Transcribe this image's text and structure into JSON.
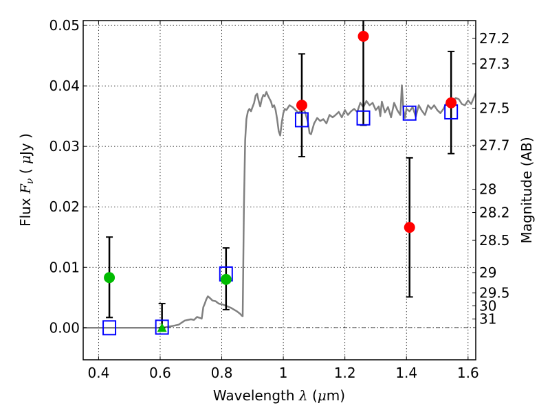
{
  "chart_data": {
    "type": "scatter",
    "title": "",
    "xlabel": "Wavelength  λ (μm)",
    "xlabel_parts": [
      "Wavelength  ",
      "λ",
      " (",
      "μ",
      "m)"
    ],
    "ylabel_parts": [
      "Flux  ",
      "F",
      "ν",
      "  ( ",
      "μ",
      "Jy )"
    ],
    "ylabel_right": "Magnitude (AB)",
    "xlim": [
      0.35,
      1.625
    ],
    "ylim": [
      -0.0053,
      0.0508
    ],
    "grid": true,
    "x_ticks": [
      {
        "value": 0.4,
        "label": "0.4"
      },
      {
        "value": 0.6,
        "label": "0.6"
      },
      {
        "value": 0.8,
        "label": "0.8"
      },
      {
        "value": 1.0,
        "label": "1"
      },
      {
        "value": 1.2,
        "label": "1.2"
      },
      {
        "value": 1.4,
        "label": "1.4"
      },
      {
        "value": 1.6,
        "label": "1.6"
      }
    ],
    "y_ticks": [
      {
        "value": 0.0,
        "label": "0.00"
      },
      {
        "value": 0.01,
        "label": "0.01"
      },
      {
        "value": 0.02,
        "label": "0.02"
      },
      {
        "value": 0.03,
        "label": "0.03"
      },
      {
        "value": 0.04,
        "label": "0.04"
      },
      {
        "value": 0.05,
        "label": "0.05"
      }
    ],
    "magnitude_ticks": [
      {
        "value": 27.2,
        "label": "27.2"
      },
      {
        "value": 27.3,
        "label": "27.3"
      },
      {
        "value": 27.5,
        "label": "27.5"
      },
      {
        "value": 27.7,
        "label": "27.7"
      },
      {
        "value": 28,
        "label": "28"
      },
      {
        "value": 28.2,
        "label": "28.2"
      },
      {
        "value": 28.5,
        "label": "28.5"
      },
      {
        "value": 29,
        "label": "29"
      },
      {
        "value": 29.5,
        "label": "29.5"
      },
      {
        "value": 30,
        "label": "30"
      },
      {
        "value": 31,
        "label": "31"
      }
    ],
    "magnitude_zeropoint": 23.9,
    "zero_line": 0,
    "colors": {
      "model": "#808080",
      "observed_detected": "#00bb00",
      "observed_red": "#ff0000",
      "model_photometry": "#0000ff",
      "errorbar": "#000000"
    },
    "series": [
      {
        "name": "model SED",
        "type": "line",
        "x": [
          0.35,
          0.6,
          0.62,
          0.64,
          0.66,
          0.68,
          0.7,
          0.71,
          0.72,
          0.725,
          0.73,
          0.735,
          0.74,
          0.745,
          0.75,
          0.755,
          0.76,
          0.77,
          0.78,
          0.79,
          0.8,
          0.81,
          0.82,
          0.83,
          0.84,
          0.85,
          0.86,
          0.865,
          0.868,
          0.872,
          0.876,
          0.88,
          0.885,
          0.89,
          0.895,
          0.9,
          0.905,
          0.91,
          0.915,
          0.92,
          0.925,
          0.93,
          0.935,
          0.94,
          0.945,
          0.95,
          0.955,
          0.96,
          0.965,
          0.97,
          0.975,
          0.98,
          0.985,
          0.99,
          0.995,
          1.0,
          1.005,
          1.01,
          1.02,
          1.03,
          1.04,
          1.05,
          1.06,
          1.07,
          1.08,
          1.085,
          1.09,
          1.1,
          1.11,
          1.12,
          1.13,
          1.14,
          1.15,
          1.16,
          1.17,
          1.18,
          1.19,
          1.2,
          1.21,
          1.22,
          1.23,
          1.24,
          1.25,
          1.26,
          1.27,
          1.28,
          1.29,
          1.3,
          1.31,
          1.315,
          1.32,
          1.33,
          1.34,
          1.35,
          1.36,
          1.37,
          1.38,
          1.385,
          1.39,
          1.395,
          1.4,
          1.41,
          1.42,
          1.43,
          1.44,
          1.45,
          1.46,
          1.47,
          1.48,
          1.49,
          1.5,
          1.51,
          1.52,
          1.53,
          1.54,
          1.55,
          1.56,
          1.57,
          1.58,
          1.59,
          1.6,
          1.61,
          1.625
        ],
        "y": [
          0.0,
          0.0,
          0.0001,
          0.0003,
          0.0005,
          0.0012,
          0.0014,
          0.0013,
          0.0018,
          0.0017,
          0.0016,
          0.0015,
          0.0034,
          0.004,
          0.0047,
          0.0052,
          0.005,
          0.0045,
          0.0044,
          0.004,
          0.0039,
          0.0037,
          0.0035,
          0.0033,
          0.003,
          0.0027,
          0.0023,
          0.002,
          0.0019,
          0.02,
          0.031,
          0.0345,
          0.0358,
          0.0362,
          0.0358,
          0.0365,
          0.0372,
          0.0384,
          0.0387,
          0.0375,
          0.0366,
          0.0378,
          0.0385,
          0.0383,
          0.039,
          0.0384,
          0.0379,
          0.0374,
          0.0365,
          0.0368,
          0.036,
          0.0345,
          0.0325,
          0.0318,
          0.034,
          0.0355,
          0.0362,
          0.036,
          0.0368,
          0.0365,
          0.036,
          0.0355,
          0.0362,
          0.0358,
          0.034,
          0.0322,
          0.032,
          0.0338,
          0.0347,
          0.0342,
          0.0345,
          0.0338,
          0.0352,
          0.0348,
          0.0352,
          0.0357,
          0.0348,
          0.036,
          0.0352,
          0.0358,
          0.0362,
          0.0357,
          0.0372,
          0.0365,
          0.0375,
          0.0368,
          0.0372,
          0.036,
          0.0366,
          0.035,
          0.0374,
          0.0356,
          0.0365,
          0.0348,
          0.0372,
          0.036,
          0.0352,
          0.0401,
          0.036,
          0.0347,
          0.0362,
          0.0358,
          0.0365,
          0.0349,
          0.0368,
          0.0359,
          0.0352,
          0.0368,
          0.0362,
          0.0368,
          0.036,
          0.0355,
          0.0362,
          0.0372,
          0.0365,
          0.0375,
          0.038,
          0.0378,
          0.037,
          0.0368,
          0.0376,
          0.037,
          0.0388
        ]
      },
      {
        "name": "observed (green)",
        "type": "scatter",
        "marker": "circle",
        "color": "#00bb00",
        "points": [
          {
            "x": 0.435,
            "y": 0.0083,
            "err_low": 0.0017,
            "err_high": 0.015
          },
          {
            "x": 0.814,
            "y": 0.008,
            "err_low": 0.003,
            "err_high": 0.0132
          }
        ]
      },
      {
        "name": "upper limit (green triangle)",
        "type": "scatter",
        "marker": "triangle",
        "color": "#00bb00",
        "points": [
          {
            "x": 0.606,
            "y": 0.0,
            "err_low": 0.0,
            "err_high": 0.004
          }
        ]
      },
      {
        "name": "observed (red)",
        "type": "scatter",
        "marker": "circle",
        "color": "#ff0000",
        "points": [
          {
            "x": 1.06,
            "y": 0.0368,
            "err_low": 0.0283,
            "err_high": 0.0453
          },
          {
            "x": 1.26,
            "y": 0.0482,
            "err_low": 0.0335,
            "err_high": 0.063
          },
          {
            "x": 1.41,
            "y": 0.0166,
            "err_low": 0.0051,
            "err_high": 0.0281
          },
          {
            "x": 1.545,
            "y": 0.0372,
            "err_low": 0.0288,
            "err_high": 0.0457
          }
        ]
      },
      {
        "name": "model photometry",
        "type": "scatter",
        "marker": "square-open",
        "color": "#0000ff",
        "points": [
          {
            "x": 0.435,
            "y": 0.0
          },
          {
            "x": 0.606,
            "y": 0.0001
          },
          {
            "x": 0.814,
            "y": 0.0089
          },
          {
            "x": 1.06,
            "y": 0.0344
          },
          {
            "x": 1.26,
            "y": 0.0347
          },
          {
            "x": 1.41,
            "y": 0.0355
          },
          {
            "x": 1.545,
            "y": 0.0357
          }
        ]
      }
    ]
  }
}
